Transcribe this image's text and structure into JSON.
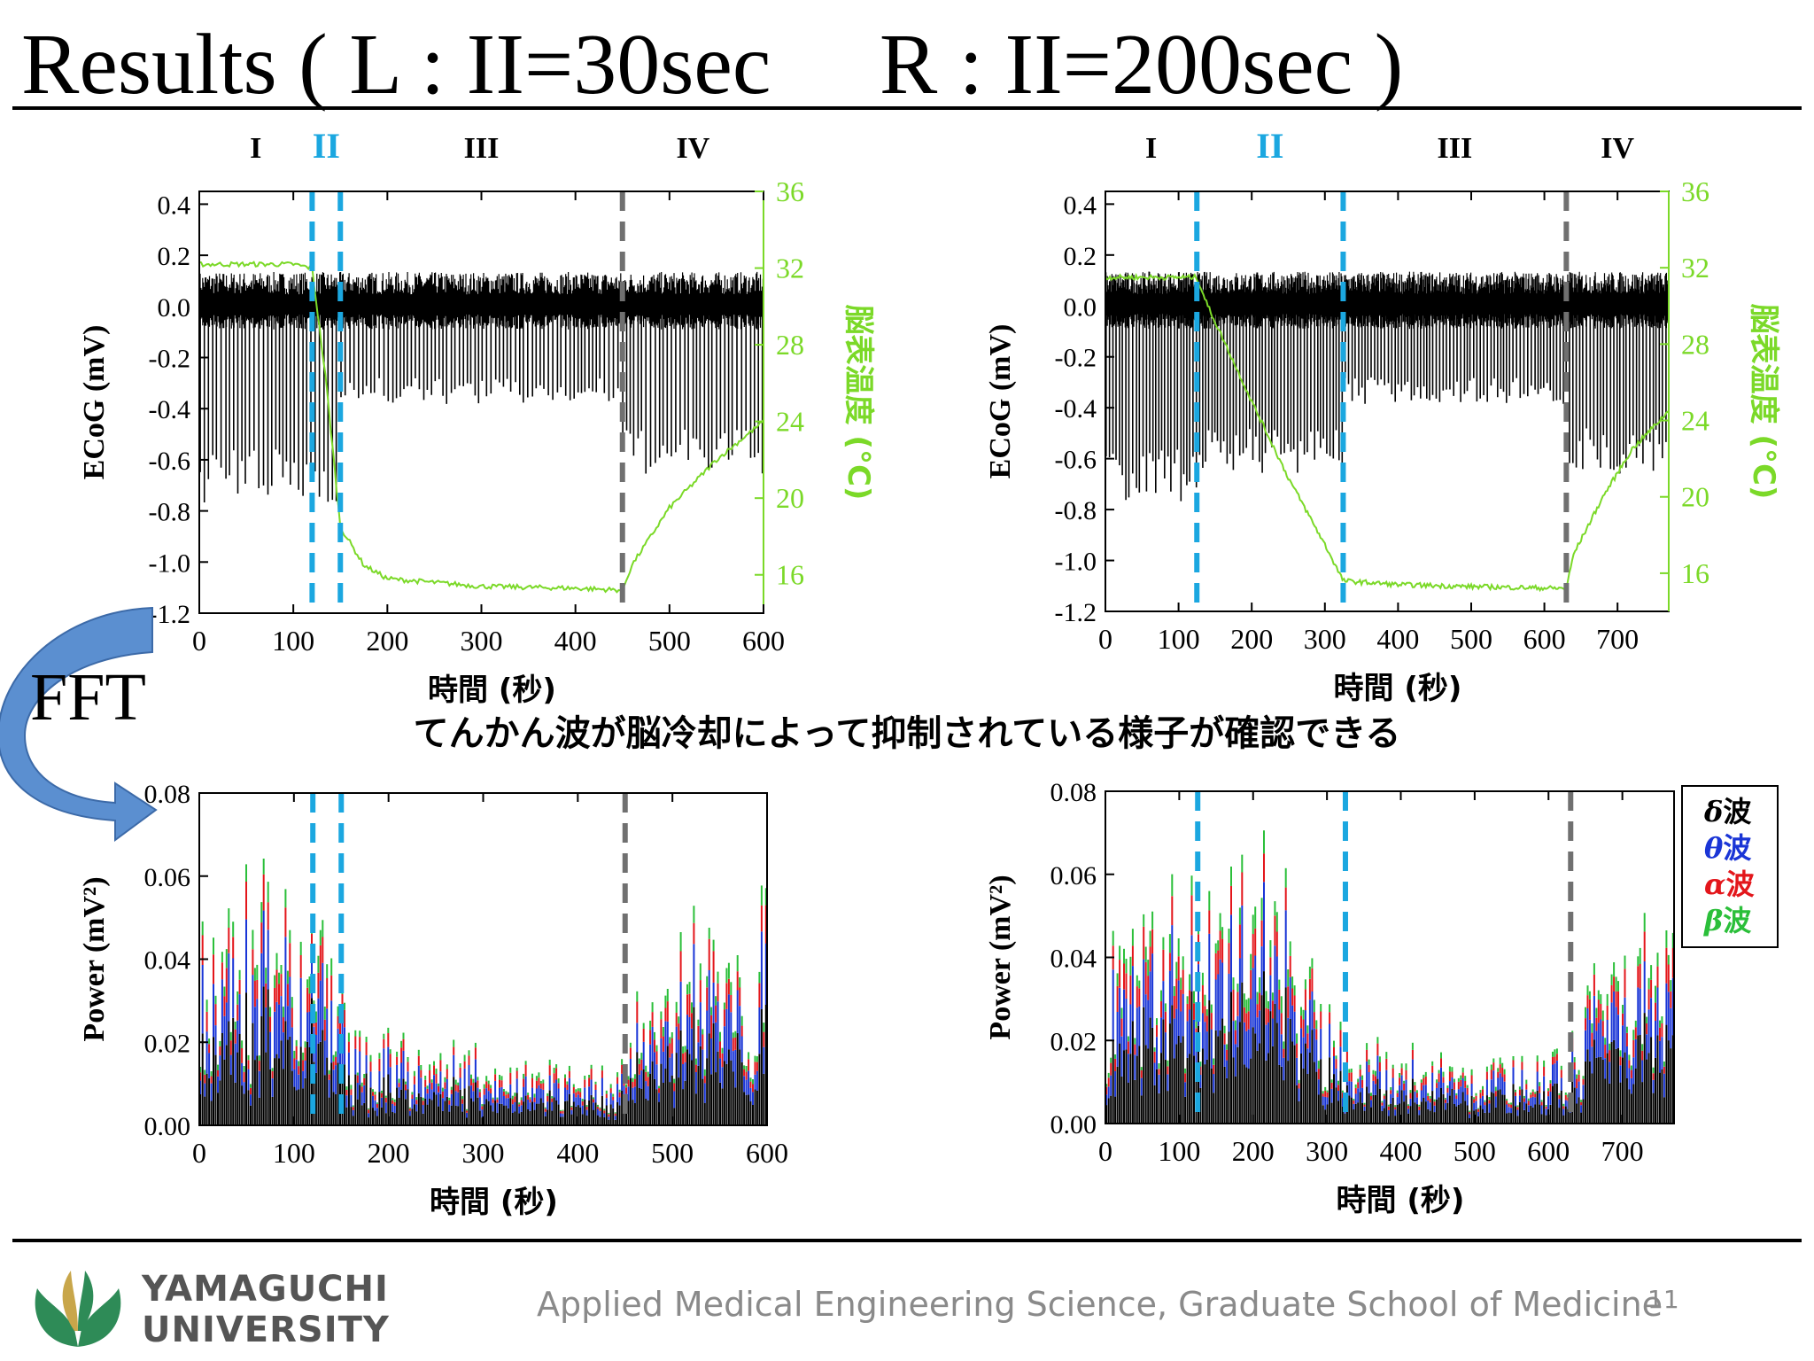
{
  "title": "Results ( L : II=30sec　 R : II=200sec )",
  "fft_label": "FFT",
  "caption": "てんかん波が脳冷却によって抑制されている様子が確認できる",
  "footer": {
    "institution_line1": "YAMAGUCHI",
    "institution_line2": "UNIVERSITY",
    "department": "Applied Medical Engineering Science, Graduate School of Medicine",
    "page_number": "11"
  },
  "colors": {
    "signal": "#000000",
    "temperature": "#7bd928",
    "phase_divider_cooling": "#1ba7e0",
    "phase_divider_rewarm": "#707070",
    "delta": "#000000",
    "theta": "#1a35d6",
    "alpha": "#e3161b",
    "beta": "#2bbf3a",
    "logo_green": "#2e8b57"
  },
  "legend": {
    "items": [
      {
        "symbol": "δ",
        "label": "波",
        "color": "#000000"
      },
      {
        "symbol": "θ",
        "label": "波",
        "color": "#1a35d6"
      },
      {
        "symbol": "α",
        "label": "波",
        "color": "#e3161b"
      },
      {
        "symbol": "β",
        "label": "波",
        "color": "#2bbf3a"
      }
    ]
  },
  "chart_data": [
    {
      "id": "ecog-left",
      "type": "line",
      "ylabel": "ECoG (mV)",
      "y2label": "脳表温度 (°C)",
      "xlabel": "時間 (秒)",
      "xlim": [
        0,
        600
      ],
      "ylim": [
        -1.2,
        0.45
      ],
      "y2lim": [
        14,
        36
      ],
      "xticks": [
        0,
        100,
        200,
        300,
        400,
        500,
        600
      ],
      "yticks": [
        -1.2,
        -1.0,
        -0.8,
        -0.6,
        -0.4,
        -0.2,
        0.0,
        0.2,
        0.4
      ],
      "ytick_labels": [
        "-1.2",
        "-1.0",
        "-0.8",
        "-0.6",
        "-0.4",
        "-0.2",
        "0.0",
        "0.2",
        "0.4"
      ],
      "y2ticks": [
        16,
        20,
        24,
        28,
        32,
        36
      ],
      "phases": [
        {
          "label": "I",
          "start": 0,
          "end": 120
        },
        {
          "label": "II",
          "start": 120,
          "end": 150
        },
        {
          "label": "III",
          "start": 150,
          "end": 450
        },
        {
          "label": "IV",
          "start": 450,
          "end": 600
        }
      ],
      "dividers": [
        {
          "x": 120,
          "kind": "cooling"
        },
        {
          "x": 150,
          "kind": "cooling"
        },
        {
          "x": 450,
          "kind": "rewarm"
        }
      ],
      "series": [
        {
          "kind": "spikes",
          "spike_depth_by_phase": {
            "I": -0.7,
            "II": -0.7,
            "III": -0.35,
            "IV": -0.6
          },
          "baseline_noise": 0.15
        },
        {
          "kind": "temperature",
          "axis": "y2",
          "points": [
            [
              0,
              32.2
            ],
            [
              100,
              32.2
            ],
            [
              120,
              32.0
            ],
            [
              135,
              26
            ],
            [
              150,
              18.5
            ],
            [
              175,
              16.5
            ],
            [
              200,
              15.8
            ],
            [
              300,
              15.4
            ],
            [
              400,
              15.3
            ],
            [
              450,
              15.2
            ],
            [
              460,
              16.5
            ],
            [
              500,
              19.5
            ],
            [
              550,
              22
            ],
            [
              600,
              24
            ]
          ]
        }
      ]
    },
    {
      "id": "ecog-right",
      "type": "line",
      "ylabel": "ECoG (mV)",
      "y2label": "脳表温度 (°C)",
      "xlabel": "時間 (秒)",
      "xlim": [
        0,
        770
      ],
      "ylim": [
        -1.2,
        0.45
      ],
      "y2lim": [
        14,
        36
      ],
      "xticks": [
        0,
        100,
        200,
        300,
        400,
        500,
        600,
        700
      ],
      "yticks": [
        -1.2,
        -1.0,
        -0.8,
        -0.6,
        -0.4,
        -0.2,
        0.0,
        0.2,
        0.4
      ],
      "ytick_labels": [
        "-1.2",
        "-1.0",
        "-0.8",
        "-0.6",
        "-0.4",
        "-0.2",
        "0.0",
        "0.2",
        "0.4"
      ],
      "y2ticks": [
        16,
        20,
        24,
        28,
        32,
        36
      ],
      "phases": [
        {
          "label": "I",
          "start": 0,
          "end": 125
        },
        {
          "label": "II",
          "start": 125,
          "end": 325
        },
        {
          "label": "III",
          "start": 325,
          "end": 630
        },
        {
          "label": "IV",
          "start": 630,
          "end": 770
        }
      ],
      "dividers": [
        {
          "x": 125,
          "kind": "cooling"
        },
        {
          "x": 325,
          "kind": "cooling"
        },
        {
          "x": 630,
          "kind": "rewarm"
        }
      ],
      "series": [
        {
          "kind": "spikes",
          "spike_depth_by_phase": {
            "I": -0.7,
            "II": -0.6,
            "III": -0.35,
            "IV": -0.6
          },
          "baseline_noise": 0.15
        },
        {
          "kind": "temperature",
          "axis": "y2",
          "points": [
            [
              0,
              31.5
            ],
            [
              125,
              31.5
            ],
            [
              140,
              30
            ],
            [
              200,
              25
            ],
            [
              250,
              21
            ],
            [
              300,
              17.5
            ],
            [
              325,
              15.6
            ],
            [
              400,
              15.4
            ],
            [
              500,
              15.3
            ],
            [
              630,
              15.2
            ],
            [
              640,
              17
            ],
            [
              680,
              20
            ],
            [
              720,
              22.5
            ],
            [
              770,
              24.5
            ]
          ]
        }
      ]
    },
    {
      "id": "power-left",
      "type": "bar",
      "stacked": true,
      "ylabel": "Power (mV²)",
      "xlabel": "時間 (秒)",
      "xlim": [
        0,
        600
      ],
      "ylim": [
        0,
        0.08
      ],
      "xticks": [
        0,
        100,
        200,
        300,
        400,
        500,
        600
      ],
      "yticks": [
        0.0,
        0.02,
        0.04,
        0.06,
        0.08
      ],
      "ytick_labels": [
        "0.00",
        "0.02",
        "0.04",
        "0.06",
        "0.08"
      ],
      "dividers": [
        {
          "x": 120,
          "kind": "cooling"
        },
        {
          "x": 150,
          "kind": "cooling"
        },
        {
          "x": 450,
          "kind": "rewarm"
        }
      ],
      "series_names": [
        "δ波",
        "θ波",
        "α波",
        "β波"
      ],
      "envelope": [
        [
          0,
          0.055
        ],
        [
          60,
          0.058
        ],
        [
          120,
          0.06
        ],
        [
          150,
          0.045
        ],
        [
          155,
          0.025
        ],
        [
          300,
          0.017
        ],
        [
          450,
          0.015
        ],
        [
          460,
          0.03
        ],
        [
          520,
          0.05
        ],
        [
          600,
          0.055
        ]
      ]
    },
    {
      "id": "power-right",
      "type": "bar",
      "stacked": true,
      "ylabel": "Power (mV²)",
      "xlabel": "時間 (秒)",
      "xlim": [
        0,
        770
      ],
      "ylim": [
        0,
        0.08
      ],
      "xticks": [
        0,
        100,
        200,
        300,
        400,
        500,
        600,
        700
      ],
      "yticks": [
        0.0,
        0.02,
        0.04,
        0.06,
        0.08
      ],
      "ytick_labels": [
        "0.00",
        "0.02",
        "0.04",
        "0.06",
        "0.08"
      ],
      "dividers": [
        {
          "x": 125,
          "kind": "cooling"
        },
        {
          "x": 325,
          "kind": "cooling"
        },
        {
          "x": 630,
          "kind": "rewarm"
        }
      ],
      "series_names": [
        "δ波",
        "θ波",
        "α波",
        "β波"
      ],
      "envelope": [
        [
          0,
          0.05
        ],
        [
          100,
          0.055
        ],
        [
          200,
          0.065
        ],
        [
          260,
          0.05
        ],
        [
          300,
          0.03
        ],
        [
          330,
          0.02
        ],
        [
          500,
          0.016
        ],
        [
          630,
          0.018
        ],
        [
          640,
          0.03
        ],
        [
          700,
          0.045
        ],
        [
          770,
          0.05
        ]
      ]
    }
  ]
}
